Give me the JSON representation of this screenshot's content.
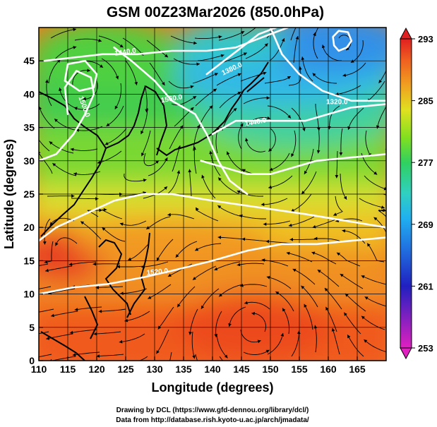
{
  "header": {
    "title": "GSM 00Z23Mar2026 (850.0hPa)"
  },
  "credits": {
    "line1": "Drawing by DCL (https://www.gfd-dennou.org/library/dcl/)",
    "line2": "Data from http://database.rish.kyoto-u.ac.jp/arch/jmadata/"
  },
  "chart_data": {
    "type": "heatmap",
    "title": "GSM 00Z23Mar2026 (850.0hPa)",
    "xlabel": "Longitude (degrees)",
    "ylabel": "Latitude  (degrees)",
    "xlim": [
      110,
      170
    ],
    "ylim": [
      0,
      50
    ],
    "x_ticks": [
      110,
      115,
      120,
      125,
      130,
      135,
      140,
      145,
      150,
      155,
      160,
      165
    ],
    "y_ticks": [
      0,
      5,
      10,
      15,
      20,
      25,
      30,
      35,
      40,
      45
    ],
    "grid": true,
    "colorbar": {
      "min": 253,
      "max": 293,
      "ticks": [
        253,
        261,
        269,
        277,
        285,
        293
      ],
      "placement": "right",
      "colors": [
        "#e020c0",
        "#8020c0",
        "#2020c0",
        "#2070e0",
        "#20b0f0",
        "#30d0c0",
        "#30d060",
        "#80e020",
        "#e0e020",
        "#f0a020",
        "#f06020",
        "#e02020"
      ]
    },
    "contour_labels": [
      {
        "text": "1440.0",
        "lon": 125,
        "lat": 46,
        "rotate": -8
      },
      {
        "text": "1380.0",
        "lon": 143.5,
        "lat": 43.5,
        "rotate": -25
      },
      {
        "text": "1320.0",
        "lon": 161.5,
        "lat": 38.5,
        "rotate": 0
      },
      {
        "text": "1440.0",
        "lon": 147.5,
        "lat": 35.5,
        "rotate": -10
      },
      {
        "text": "1560.0",
        "lon": 133,
        "lat": 39,
        "rotate": -10
      },
      {
        "text": "1500.0",
        "lon": 117.5,
        "lat": 38,
        "rotate": 70
      },
      {
        "text": "1520.0",
        "lon": 130.5,
        "lat": 13,
        "rotate": -5
      }
    ],
    "contours": [
      {
        "level": 1560,
        "points": [
          [
            110,
            18
          ],
          [
            113,
            20
          ],
          [
            118,
            22
          ],
          [
            123,
            24
          ],
          [
            128,
            25
          ],
          [
            133,
            25
          ],
          [
            140,
            24
          ],
          [
            148,
            23
          ],
          [
            156,
            22
          ],
          [
            163,
            21
          ],
          [
            170,
            20
          ]
        ]
      },
      {
        "level": 1520,
        "points": [
          [
            110,
            10
          ],
          [
            116,
            11
          ],
          [
            122,
            11.5
          ],
          [
            128,
            12.5
          ],
          [
            133,
            13.5
          ],
          [
            140,
            15
          ],
          [
            146,
            16.5
          ],
          [
            152,
            17.5
          ],
          [
            158,
            17.5
          ],
          [
            164,
            18
          ],
          [
            170,
            18.5
          ]
        ]
      },
      {
        "level": 1500,
        "points": [
          [
            110,
            30
          ],
          [
            113,
            31
          ],
          [
            116,
            34
          ],
          [
            118,
            37
          ],
          [
            119.5,
            40
          ],
          [
            119,
            42.5
          ],
          [
            116.5,
            43.5
          ],
          [
            114.5,
            41
          ],
          [
            115,
            37
          ]
        ]
      },
      {
        "level": 1560,
        "points": [
          [
            123,
            47
          ],
          [
            126,
            45
          ],
          [
            130,
            42
          ],
          [
            133,
            39
          ],
          [
            137,
            37
          ],
          [
            139,
            34
          ],
          [
            141,
            30
          ],
          [
            143,
            27
          ],
          [
            146,
            25
          ]
        ]
      },
      {
        "level": 1440,
        "points": [
          [
            111,
            45
          ],
          [
            116,
            45.5
          ],
          [
            121,
            46
          ],
          [
            127,
            46
          ],
          [
            133,
            46.5
          ],
          [
            139,
            46.5
          ],
          [
            144,
            47
          ],
          [
            150,
            49
          ],
          [
            153,
            50
          ]
        ]
      },
      {
        "level": 1380,
        "points": [
          [
            139,
            43
          ],
          [
            142,
            45
          ],
          [
            145,
            47
          ],
          [
            148,
            49
          ],
          [
            151,
            50
          ]
        ]
      },
      {
        "level": 1440,
        "points": [
          [
            140,
            34
          ],
          [
            144,
            36
          ],
          [
            148,
            36
          ],
          [
            152,
            36
          ],
          [
            156,
            36
          ],
          [
            160,
            37
          ],
          [
            164,
            38
          ],
          [
            170,
            38.5
          ]
        ]
      },
      {
        "level": 1500,
        "points": [
          [
            138,
            30
          ],
          [
            142,
            29
          ],
          [
            146,
            28
          ],
          [
            150,
            28
          ],
          [
            154,
            29
          ],
          [
            158,
            30
          ],
          [
            164,
            30.5
          ],
          [
            170,
            31
          ]
        ]
      },
      {
        "level": 1320,
        "points": [
          [
            150,
            50
          ],
          [
            152,
            46
          ],
          [
            155,
            43
          ],
          [
            159,
            40.5
          ],
          [
            164,
            39
          ],
          [
            170,
            39
          ]
        ]
      },
      {
        "level": 1260,
        "points": [
          [
            161.8,
            46.5
          ],
          [
            163.2,
            47
          ],
          [
            164,
            48
          ],
          [
            163.4,
            49.3
          ],
          [
            161.8,
            49.5
          ],
          [
            160.8,
            48.6
          ],
          [
            161,
            47.3
          ],
          [
            161.8,
            46.5
          ]
        ]
      },
      {
        "level": 1380,
        "points": [
          [
            115,
            44.5
          ],
          [
            118,
            45
          ],
          [
            120,
            43
          ],
          [
            119.5,
            41
          ],
          [
            117,
            40.5
          ],
          [
            114.5,
            42
          ],
          [
            115,
            44.5
          ]
        ]
      }
    ],
    "vortex_centers": [
      {
        "lon": 118,
        "lat": 41.5
      },
      {
        "lon": 148.5,
        "lat": 33.5
      },
      {
        "lon": 162.5,
        "lat": 48
      },
      {
        "lon": 147,
        "lat": 5
      }
    ]
  }
}
